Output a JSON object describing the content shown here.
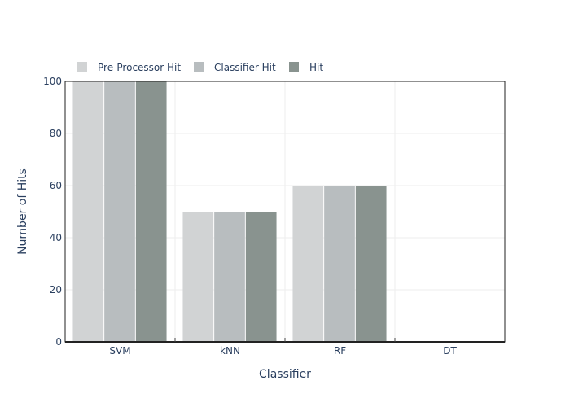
{
  "chart_data": {
    "type": "bar",
    "categories": [
      "SVM",
      "kNN",
      "RF",
      "DT"
    ],
    "series": [
      {
        "name": "Pre-Processor Hit",
        "values": [
          100,
          50,
          60,
          0
        ],
        "color": "#d1d3d4"
      },
      {
        "name": "Classifier Hit",
        "values": [
          100,
          50,
          60,
          0
        ],
        "color": "#b8bdbf"
      },
      {
        "name": "Hit",
        "values": [
          100,
          50,
          60,
          0
        ],
        "color": "#89938f"
      }
    ],
    "xlabel": "Classifier",
    "ylabel": "Number of Hits",
    "ylim": [
      0,
      100
    ],
    "yticks": [
      0,
      20,
      40,
      60,
      80,
      100
    ],
    "grid": true,
    "legend_position": "top-left, horizontal"
  }
}
